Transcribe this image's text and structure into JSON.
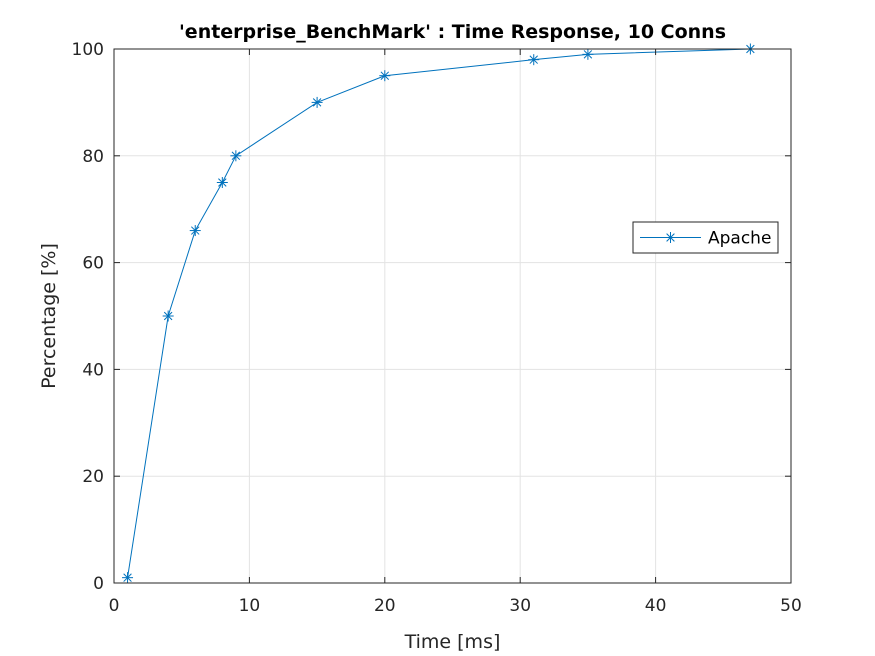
{
  "chart_data": {
    "type": "line",
    "title": "'enterprise_BenchMark' : Time Response, 10 Conns",
    "xlabel": "Time [ms]",
    "ylabel": "Percentage [%]",
    "xlim": [
      0,
      50
    ],
    "ylim": [
      0,
      100
    ],
    "xticks": [
      0,
      10,
      20,
      30,
      40,
      50
    ],
    "yticks": [
      0,
      20,
      40,
      60,
      80,
      100
    ],
    "grid": true,
    "legend_position": "right",
    "marker": "asterisk",
    "series": [
      {
        "name": "Apache",
        "color": "#0072BD",
        "x": [
          1,
          4,
          6,
          8,
          9,
          15,
          20,
          31,
          35,
          47
        ],
        "y": [
          1,
          50,
          66,
          75,
          80,
          90,
          95,
          98,
          99,
          100
        ]
      }
    ]
  }
}
